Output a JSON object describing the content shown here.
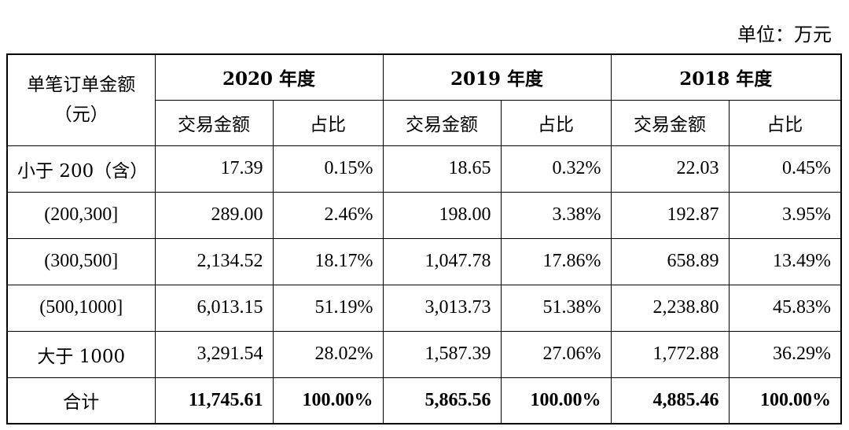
{
  "unit": "单位：万元",
  "header": {
    "row_label_line1": "单笔订单金额",
    "row_label_line2": "（元）",
    "years": [
      "2020 年度",
      "2019 年度",
      "2018 年度"
    ],
    "sub_amount": "交易金额",
    "sub_ratio": "占比"
  },
  "rows": [
    {
      "label": "小于 200（含）",
      "v": [
        "17.39",
        "0.15%",
        "18.65",
        "0.32%",
        "22.03",
        "0.45%"
      ]
    },
    {
      "label": "(200,300]",
      "v": [
        "289.00",
        "2.46%",
        "198.00",
        "3.38%",
        "192.87",
        "3.95%"
      ]
    },
    {
      "label": "(300,500]",
      "v": [
        "2,134.52",
        "18.17%",
        "1,047.78",
        "17.86%",
        "658.89",
        "13.49%"
      ]
    },
    {
      "label": "(500,1000]",
      "v": [
        "6,013.15",
        "51.19%",
        "3,013.73",
        "51.38%",
        "2,238.80",
        "45.83%"
      ]
    },
    {
      "label": "大于 1000",
      "v": [
        "3,291.54",
        "28.02%",
        "1,587.39",
        "27.06%",
        "1,772.88",
        "36.29%"
      ]
    }
  ],
  "total": {
    "label": "合计",
    "v": [
      "11,745.61",
      "100.00%",
      "5,865.56",
      "100.00%",
      "4,885.46",
      "100.00%"
    ]
  }
}
